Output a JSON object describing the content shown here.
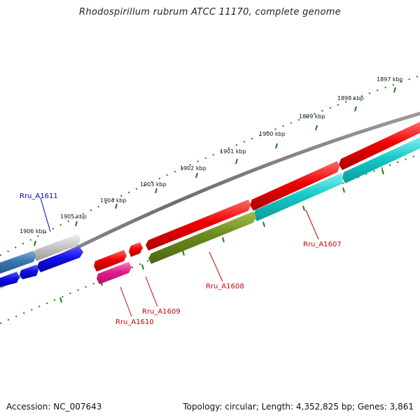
{
  "title": "Rhodospirillum rubrum ATCC 11170, complete genome",
  "footer": {
    "accession": "Accession: NC_007643",
    "summary": "Topology: circular; Length: 4,352,825 bp; Genes: 3,861"
  },
  "scale_labels": [
    "1897 kbp",
    "1898 kbp",
    "1899 kbp",
    "1900 kbp",
    "1901 kbp",
    "1902 kbp",
    "1903 kbp",
    "1904 kbp",
    "1905 kbp",
    "1906 kbp"
  ],
  "gene_labels": [
    {
      "text": "Rru_A1611",
      "color": "#0000cc"
    },
    {
      "text": "Rru_A1607",
      "color": "#cc0000"
    },
    {
      "text": "Rru_A1608",
      "color": "#cc0000"
    },
    {
      "text": "Rru_A1609",
      "color": "#cc0000"
    },
    {
      "text": "Rru_A1610",
      "color": "#cc0000"
    }
  ],
  "colors": {
    "backbone": "#777777",
    "scale_ticks": "#1a7a1a",
    "forward_feature": "#e60000",
    "reverse_cds_cyan": "#16c8c8",
    "reverse_cds_olive": "#6b8a1e",
    "reverse_cds_pink": "#e0208a",
    "reverse_cds_blue": "#1010e0",
    "reverse_cds_steelblue": "#3a78b0",
    "reverse_cds_gray": "#c8c8c8"
  }
}
